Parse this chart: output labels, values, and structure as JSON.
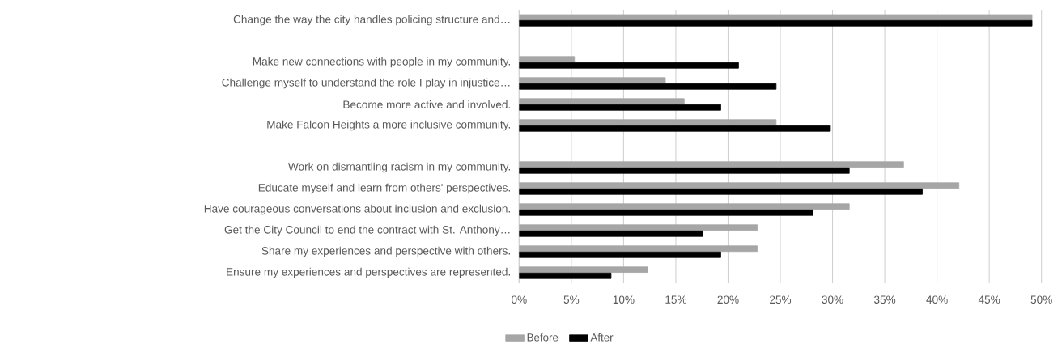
{
  "chart_data": {
    "type": "bar",
    "orientation": "horizontal",
    "categories": [
      "Change the way the city handles policing structure and…",
      null,
      "Make new connections with people in my community.",
      "Challenge myself to understand the role I play in injustice…",
      "Become more active and involved.",
      "Make Falcon Heights a more inclusive community.",
      null,
      "Work on dismantling racism in my community.",
      "Educate myself and learn from others' perspectives.",
      "Have courageous conversations about inclusion and exclusion.",
      "Get the City Council to end the contract with St. Anthony…",
      "Share my experiences and perspective with others.",
      "Ensure my experiences and perspectives are represented."
    ],
    "series": [
      {
        "name": "Before",
        "color": "#a6a6a6",
        "values": [
          49.1,
          null,
          5.3,
          14.0,
          15.8,
          24.6,
          null,
          36.8,
          42.1,
          31.6,
          22.8,
          22.8,
          12.3
        ]
      },
      {
        "name": "After",
        "color": "#000000",
        "values": [
          49.1,
          null,
          21.0,
          24.6,
          19.3,
          29.8,
          null,
          31.6,
          38.6,
          28.1,
          17.6,
          19.3,
          8.8
        ]
      }
    ],
    "xlim": [
      0,
      50
    ],
    "xticks": [
      {
        "value": 0,
        "label": "0%"
      },
      {
        "value": 5,
        "label": "5%"
      },
      {
        "value": 10,
        "label": "10%"
      },
      {
        "value": 15,
        "label": "15%"
      },
      {
        "value": 20,
        "label": "20%"
      },
      {
        "value": 25,
        "label": "25%"
      },
      {
        "value": 30,
        "label": "30%"
      },
      {
        "value": 35,
        "label": "35%"
      },
      {
        "value": 40,
        "label": "40%"
      },
      {
        "value": 45,
        "label": "45%"
      },
      {
        "value": 50,
        "label": "50%"
      }
    ],
    "grid": "x",
    "legend": "bottom"
  }
}
